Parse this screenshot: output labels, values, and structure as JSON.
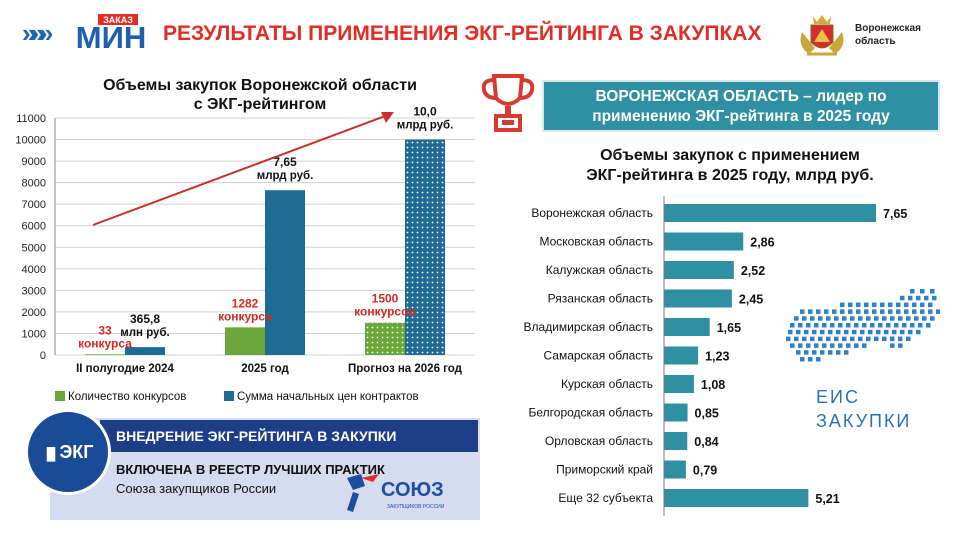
{
  "header": {
    "arrows": "»»»",
    "logo_top": "ЗАКАЗ",
    "logo_main": "МИН",
    "title": "РЕЗУЛЬТАТЫ ПРИМЕНЕНИЯ ЭКГ-РЕЙТИНГА  В ЗАКУПКАХ",
    "region_line1": "Воронежская",
    "region_line2": "область"
  },
  "colors": {
    "accent_red": "#e22d26",
    "bar_blue": "#1e6b94",
    "bar_green": "#6aa639",
    "banner_teal": "#2f8fa3",
    "navy": "#1d3e86"
  },
  "chart_data": [
    {
      "type": "bar",
      "title_line1": "Объемы закупок Воронежской области",
      "title_line2": "с ЭКГ-рейтингом",
      "categories": [
        "II полугодие 2024",
        "2025 год",
        "Прогноз на 2026 год"
      ],
      "ylim": [
        0,
        11000
      ],
      "yticks": [
        "0",
        "1000",
        "2000",
        "3000",
        "4000",
        "5000",
        "6000",
        "7000",
        "8000",
        "9000",
        "10000",
        "11000"
      ],
      "series": [
        {
          "name": "Количество конкурсов",
          "values": [
            33,
            1282,
            1500
          ],
          "labels": [
            [
              "33",
              "конкурса"
            ],
            [
              "1282",
              "конкурса"
            ],
            [
              "1500",
              "конкурсов"
            ]
          ]
        },
        {
          "name": "Сумма начальных цен контрактов",
          "values": [
            365.8,
            7650,
            10000
          ],
          "labels": [
            [
              "365,8",
              "млн руб."
            ],
            [
              "7,65",
              "млрд руб."
            ],
            [
              "10,0",
              "млрд руб."
            ]
          ]
        }
      ],
      "legend_position": "bottom"
    },
    {
      "type": "bar",
      "orientation": "horizontal",
      "title_line1": "Объемы закупок с применением",
      "title_line2": "ЭКГ-рейтинга в 2025 году, млрд руб.",
      "categories": [
        "Воронежская область",
        "Московская область",
        "Калужская область",
        "Рязанская область",
        "Владимирская область",
        "Самарская область",
        "Курская область",
        "Белгородская область",
        "Орловская область",
        "Приморский край",
        "Еще 32 субъекта"
      ],
      "values": [
        7.65,
        2.86,
        2.52,
        2.45,
        1.65,
        1.23,
        1.08,
        0.85,
        0.84,
        0.79,
        5.21
      ],
      "value_labels": [
        "7,65",
        "2,86",
        "2,52",
        "2,45",
        "1,65",
        "1,23",
        "1,08",
        "0,85",
        "0,84",
        "0,79",
        "5,21"
      ],
      "xlim": [
        0,
        8
      ]
    }
  ],
  "banner": {
    "line1": "ВОРОНЕЖСКАЯ ОБЛАСТЬ – лидер по",
    "line2": "применению ЭКГ-рейтинга в 2025 году"
  },
  "eis": {
    "line1": "ЕИС",
    "line2": "ЗАКУПКИ"
  },
  "bottom": {
    "ekg_badge": "ЭКГ",
    "header": "ВНЕДРЕНИЕ ЭКГ-РЕЙТИНГА В ЗАКУПКИ",
    "line1": "ВКЛЮЧЕНА В РЕЕСТР ЛУЧШИХ  ПРАКТИК",
    "line2": "Союза закупщиков России",
    "soyuz_name": "СОЮЗ",
    "soyuz_sub": "ЗАКУПЩИКОВ РОССИИ"
  }
}
